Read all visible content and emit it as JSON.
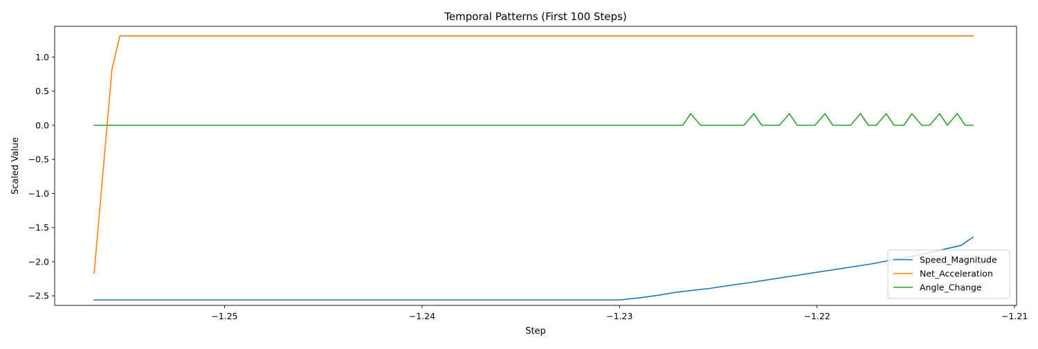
{
  "chart_data": {
    "type": "line",
    "title": "Temporal Patterns (First 100 Steps)",
    "xlabel": "Step",
    "ylabel": "Scaled Value",
    "xlim": [
      -1.2586,
      -1.2099
    ],
    "ylim": [
      -2.64,
      1.45
    ],
    "xticks": [
      -1.25,
      -1.24,
      -1.23,
      -1.22,
      -1.21
    ],
    "yticks": [
      -2.5,
      -2.0,
      -1.5,
      -1.0,
      -0.5,
      0.0,
      0.5,
      1.0
    ],
    "legend_position": "lower right",
    "grid": false,
    "series": [
      {
        "name": "Speed_Magnitude",
        "color": "#1f77b4",
        "x": [
          -1.2566,
          -1.2525,
          -1.2475,
          -1.2425,
          -1.2375,
          -1.2325,
          -1.23,
          -1.229,
          -1.228,
          -1.2272,
          -1.2263,
          -1.2254,
          -1.2245,
          -1.2235,
          -1.2226,
          -1.2217,
          -1.2208,
          -1.2199,
          -1.219,
          -1.2181,
          -1.2172,
          -1.2163,
          -1.2154,
          -1.2145,
          -1.2136,
          -1.2127,
          -1.2121
        ],
        "y": [
          -2.56,
          -2.56,
          -2.56,
          -2.56,
          -2.56,
          -2.56,
          -2.56,
          -2.53,
          -2.49,
          -2.45,
          -2.42,
          -2.39,
          -2.35,
          -2.31,
          -2.27,
          -2.23,
          -2.19,
          -2.15,
          -2.11,
          -2.07,
          -2.03,
          -1.98,
          -1.93,
          -1.88,
          -1.82,
          -1.76,
          -1.64
        ]
      },
      {
        "name": "Net_Acceleration",
        "color": "#ff7f0e",
        "x": [
          -1.2566,
          -1.2557,
          -1.2553,
          -1.2503,
          -1.2453,
          -1.2403,
          -1.2353,
          -1.2303,
          -1.2253,
          -1.2203,
          -1.2153,
          -1.2121
        ],
        "y": [
          -2.17,
          0.82,
          1.31,
          1.31,
          1.31,
          1.31,
          1.31,
          1.31,
          1.31,
          1.31,
          1.31,
          1.31
        ]
      },
      {
        "name": "Angle_Change",
        "color": "#2ca02c",
        "x": [
          -1.2566,
          -1.2268,
          -1.2264,
          -1.2259,
          -1.2237,
          -1.2232,
          -1.2228,
          -1.2219,
          -1.2214,
          -1.221,
          -1.2201,
          -1.2196,
          -1.2192,
          -1.2183,
          -1.2178,
          -1.2174,
          -1.217,
          -1.2165,
          -1.2161,
          -1.2156,
          -1.2152,
          -1.2147,
          -1.2143,
          -1.2138,
          -1.2134,
          -1.2129,
          -1.2125,
          -1.2121
        ],
        "y": [
          0.0,
          0.0,
          0.17,
          0.0,
          0.0,
          0.17,
          0.0,
          0.0,
          0.17,
          0.0,
          0.0,
          0.17,
          0.0,
          0.0,
          0.17,
          0.0,
          0.0,
          0.17,
          0.0,
          0.0,
          0.17,
          0.0,
          0.0,
          0.17,
          0.0,
          0.17,
          0.0,
          0.0
        ]
      }
    ]
  }
}
